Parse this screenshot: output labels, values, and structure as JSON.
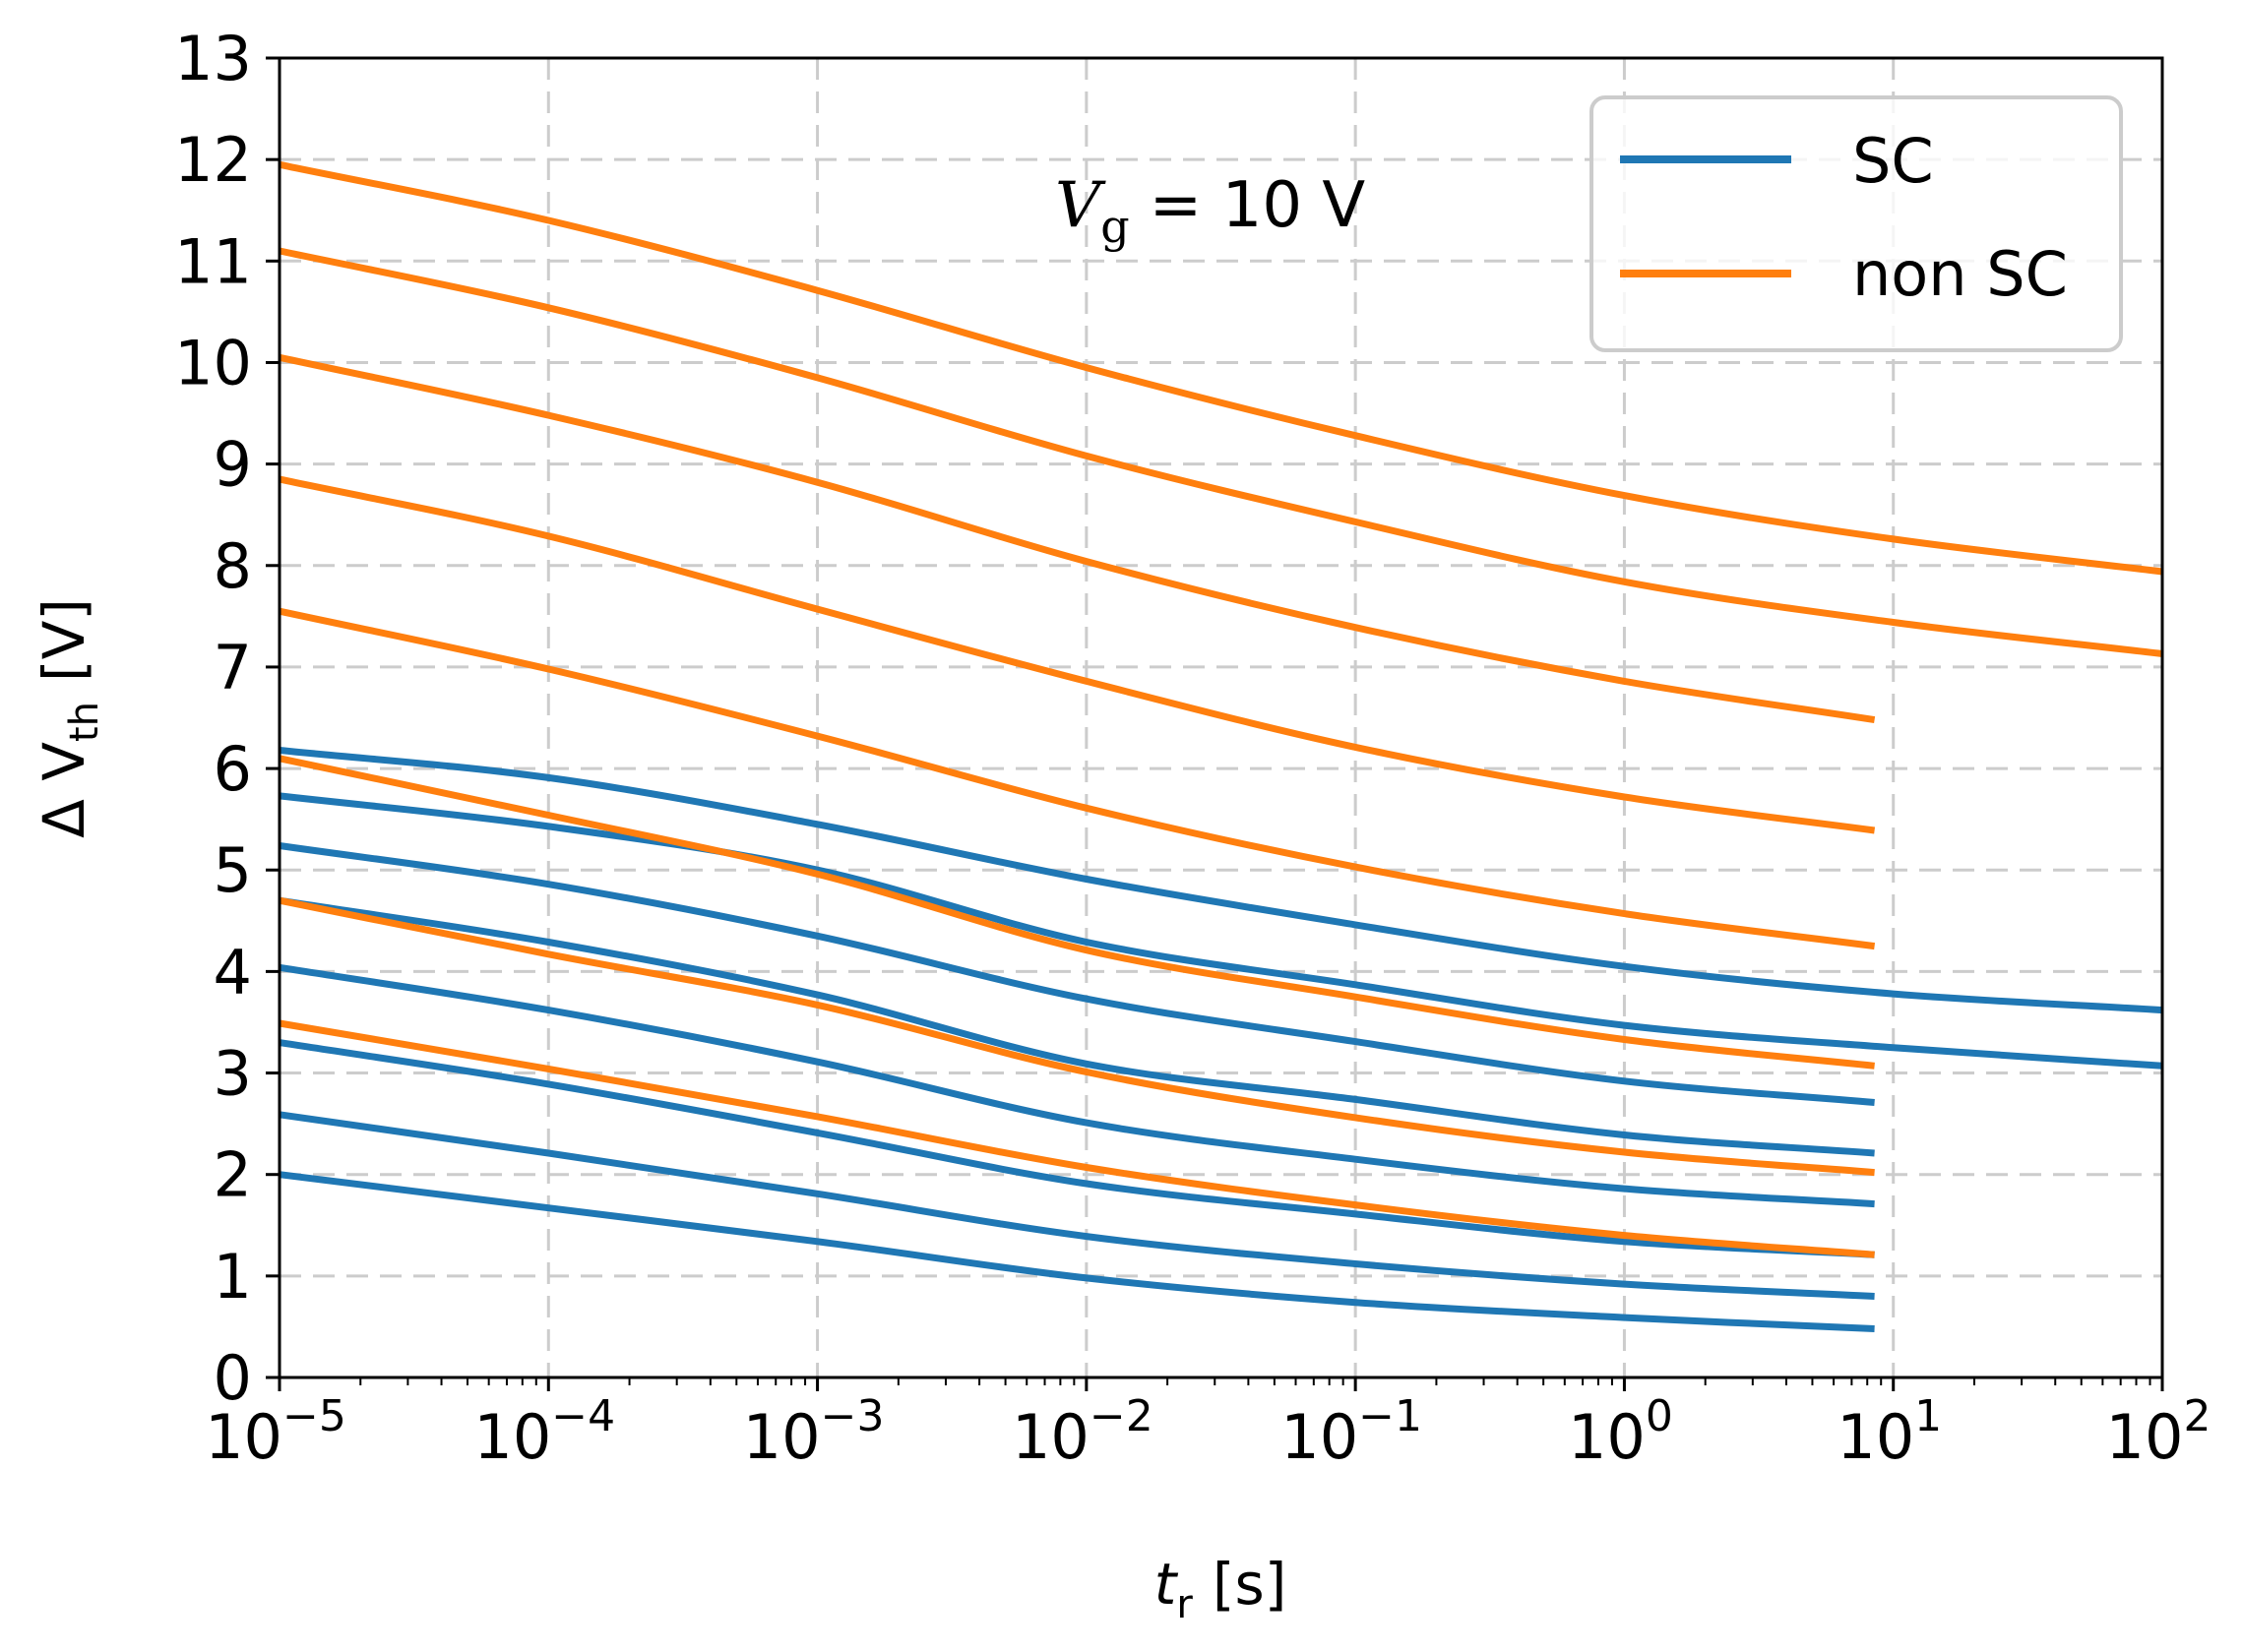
{
  "chart_data": {
    "type": "line",
    "title": "",
    "xlabel": "t_r [s]",
    "xlabel_main": "t",
    "xlabel_sub": "r",
    "xlabel_unit": "[s]",
    "ylabel": "ΔV_th [V]",
    "ylabel_main": "Δ V",
    "ylabel_sub": "th",
    "ylabel_unit": "[V]",
    "xscale": "log",
    "xlim": [
      1e-05,
      100
    ],
    "ylim": [
      0,
      13
    ],
    "x_ticks": [
      {
        "base": "10",
        "exp": "−5",
        "value": -5
      },
      {
        "base": "10",
        "exp": "−4",
        "value": -4
      },
      {
        "base": "10",
        "exp": "−3",
        "value": -3
      },
      {
        "base": "10",
        "exp": "−2",
        "value": -2
      },
      {
        "base": "10",
        "exp": "−1",
        "value": -1
      },
      {
        "base": "10",
        "exp": "0",
        "value": 0
      },
      {
        "base": "10",
        "exp": "1",
        "value": 1
      },
      {
        "base": "10",
        "exp": "2",
        "value": 2
      }
    ],
    "y_ticks": [
      "0",
      "1",
      "2",
      "3",
      "4",
      "5",
      "6",
      "7",
      "8",
      "9",
      "10",
      "11",
      "12",
      "13"
    ],
    "grid": true,
    "legend_position": "top-right",
    "annotation": {
      "var": "V",
      "sub": "g",
      "rest": "= 10 V"
    },
    "colors": {
      "SC": "#1f77b4",
      "non SC": "#ff7f0e"
    },
    "legend": [
      {
        "label": "SC",
        "color": "#1f77b4"
      },
      {
        "label": "non SC",
        "color": "#ff7f0e"
      }
    ],
    "x_log10_samples": [
      -5,
      -4,
      -3,
      -2,
      -1,
      0,
      0.93,
      1,
      2
    ],
    "series": [
      {
        "name": "non SC",
        "group": "non SC",
        "x_log10": [
          -5,
          -4,
          -3,
          -2,
          -1,
          0,
          1,
          2
        ],
        "y": [
          11.95,
          11.4,
          10.71,
          9.95,
          9.28,
          8.69,
          8.26,
          7.94
        ]
      },
      {
        "name": "non SC",
        "group": "non SC",
        "x_log10": [
          -5,
          -4,
          -3,
          -2,
          -1,
          0,
          1,
          2
        ],
        "y": [
          11.1,
          10.54,
          9.85,
          9.08,
          8.43,
          7.84,
          7.44,
          7.13
        ]
      },
      {
        "name": "non SC",
        "group": "non SC",
        "x_log10": [
          -5,
          -4,
          -3,
          -2,
          -1,
          0,
          0.93
        ],
        "y": [
          10.05,
          9.48,
          8.82,
          8.04,
          7.39,
          6.86,
          6.48
        ]
      },
      {
        "name": "non SC",
        "group": "non SC",
        "x_log10": [
          -5,
          -4,
          -3,
          -2,
          -1,
          0,
          0.93
        ],
        "y": [
          8.85,
          8.29,
          7.57,
          6.86,
          6.21,
          5.72,
          5.39
        ]
      },
      {
        "name": "non SC",
        "group": "non SC",
        "x_log10": [
          -5,
          -4,
          -3,
          -2,
          -1,
          0,
          0.93
        ],
        "y": [
          7.55,
          6.98,
          6.32,
          5.61,
          5.03,
          4.57,
          4.25
        ]
      },
      {
        "name": "non SC",
        "group": "non SC",
        "x_log10": [
          -5,
          -4,
          -3,
          -2,
          -1,
          0,
          0.93
        ],
        "y": [
          6.1,
          5.54,
          4.96,
          4.21,
          3.75,
          3.33,
          3.07
        ]
      },
      {
        "name": "non SC",
        "group": "non SC",
        "x_log10": [
          -5,
          -4,
          -3,
          -2,
          -1,
          0,
          0.93
        ],
        "y": [
          4.7,
          4.17,
          3.67,
          3.01,
          2.56,
          2.22,
          2.02
        ]
      },
      {
        "name": "non SC",
        "group": "non SC",
        "x_log10": [
          -5,
          -4,
          -3,
          -2,
          -1,
          0,
          0.93
        ],
        "y": [
          3.49,
          3.04,
          2.57,
          2.07,
          1.7,
          1.4,
          1.21
        ]
      },
      {
        "name": "SC",
        "group": "SC",
        "x_log10": [
          -5,
          -4,
          -3,
          -2,
          -1,
          0,
          1,
          2
        ],
        "y": [
          6.18,
          5.91,
          5.45,
          4.91,
          4.46,
          4.05,
          3.78,
          3.62
        ]
      },
      {
        "name": "SC",
        "group": "SC",
        "x_log10": [
          -5,
          -4,
          -3,
          -2,
          -1,
          0,
          1,
          2
        ],
        "y": [
          5.73,
          5.43,
          5.0,
          4.29,
          3.87,
          3.47,
          3.25,
          3.07
        ]
      },
      {
        "name": "SC",
        "group": "SC",
        "x_log10": [
          -5,
          -4,
          -3,
          -2,
          -1,
          0,
          0.93
        ],
        "y": [
          5.24,
          4.86,
          4.35,
          3.73,
          3.31,
          2.92,
          2.71
        ]
      },
      {
        "name": "SC",
        "group": "SC",
        "x_log10": [
          -5,
          -4,
          -3,
          -2,
          -1,
          0,
          0.93
        ],
        "y": [
          4.7,
          4.29,
          3.77,
          3.09,
          2.74,
          2.39,
          2.21
        ]
      },
      {
        "name": "SC",
        "group": "SC",
        "x_log10": [
          -5,
          -4,
          -3,
          -2,
          -1,
          0,
          0.93
        ],
        "y": [
          4.04,
          3.62,
          3.11,
          2.51,
          2.15,
          1.86,
          1.71
        ]
      },
      {
        "name": "SC",
        "group": "SC",
        "x_log10": [
          -5,
          -4,
          -3,
          -2,
          -1,
          0,
          0.93
        ],
        "y": [
          3.3,
          2.89,
          2.41,
          1.91,
          1.61,
          1.34,
          1.21
        ]
      },
      {
        "name": "SC",
        "group": "SC",
        "x_log10": [
          -5,
          -4,
          -3,
          -2,
          -1,
          0,
          0.93
        ],
        "y": [
          2.59,
          2.21,
          1.81,
          1.39,
          1.12,
          0.92,
          0.8
        ]
      },
      {
        "name": "SC",
        "group": "SC",
        "x_log10": [
          -5,
          -4,
          -3,
          -2,
          -1,
          0,
          0.93
        ],
        "y": [
          2.0,
          1.67,
          1.34,
          0.98,
          0.74,
          0.59,
          0.48
        ]
      }
    ]
  }
}
